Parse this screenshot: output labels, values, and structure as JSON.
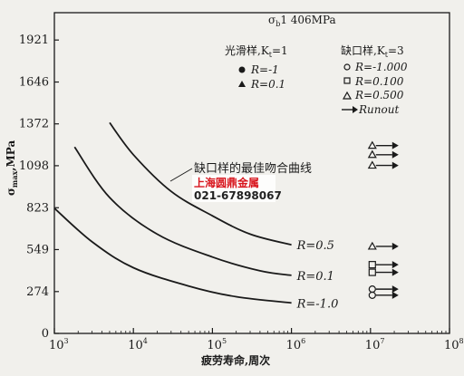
{
  "chart_data": {
    "type": "line",
    "title": "σb1 406MPa",
    "xlabel": "疲劳寿命,周次",
    "ylabel": "σmax,MPa",
    "xscale": "log",
    "xlim": [
      1000,
      100000000
    ],
    "ylim": [
      0,
      2100
    ],
    "x_tick_labels": [
      {
        "base": "10",
        "exp": "3"
      },
      {
        "base": "10",
        "exp": "4"
      },
      {
        "base": "10",
        "exp": "5"
      },
      {
        "base": "10",
        "exp": "6"
      },
      {
        "base": "10",
        "exp": "7"
      },
      {
        "base": "10",
        "exp": "8"
      }
    ],
    "x_tick_values": [
      1000,
      10000,
      100000,
      1000000,
      10000000,
      100000000
    ],
    "y_ticks": [
      0,
      274,
      549,
      823,
      1098,
      1372,
      1646,
      1921
    ],
    "legend_smooth": {
      "heading": "光滑样,K",
      "heading_sub": "t",
      "heading_tail": "=1",
      "items": [
        "R=-1",
        "R=0.1"
      ]
    },
    "legend_notched": {
      "heading": "缺口样,K",
      "heading_sub": "t",
      "heading_tail": "=3",
      "items": [
        "R=-1.000",
        "R=0.100",
        "R=0.500",
        "Runout"
      ]
    },
    "curve_annotation": "缺口样的最佳吻合曲线",
    "series": [
      {
        "name": "R=0.5",
        "x": [
          5000,
          10000,
          30000,
          100000,
          300000,
          1000000
        ],
        "y": [
          1380,
          1170,
          930,
          770,
          650,
          580
        ]
      },
      {
        "name": "R=0.1",
        "x": [
          1800,
          5000,
          20000,
          100000,
          400000,
          1000000
        ],
        "y": [
          1220,
          890,
          650,
          500,
          410,
          380
        ]
      },
      {
        "name": "R=-1.0",
        "x": [
          1000,
          3000,
          10000,
          50000,
          200000,
          1000000
        ],
        "y": [
          820,
          600,
          430,
          310,
          240,
          200
        ]
      }
    ],
    "runout_points": [
      {
        "symbol": "triangle",
        "x": 10000000,
        "y": 1230
      },
      {
        "symbol": "triangle",
        "x": 10000000,
        "y": 1170
      },
      {
        "symbol": "triangle",
        "x": 10000000,
        "y": 1100
      },
      {
        "symbol": "triangle",
        "x": 10000000,
        "y": 570
      },
      {
        "symbol": "square",
        "x": 10000000,
        "y": 450
      },
      {
        "symbol": "square",
        "x": 10000000,
        "y": 400
      },
      {
        "symbol": "circle",
        "x": 10000000,
        "y": 290
      },
      {
        "symbol": "circle",
        "x": 10000000,
        "y": 250
      }
    ]
  },
  "stamp": {
    "title": "上海圆鼎金属",
    "phone": "021-67898067"
  },
  "colors": {
    "background": "#f1f0ec",
    "ink": "#1a1a1a",
    "stamp_red": "#d8141c"
  }
}
